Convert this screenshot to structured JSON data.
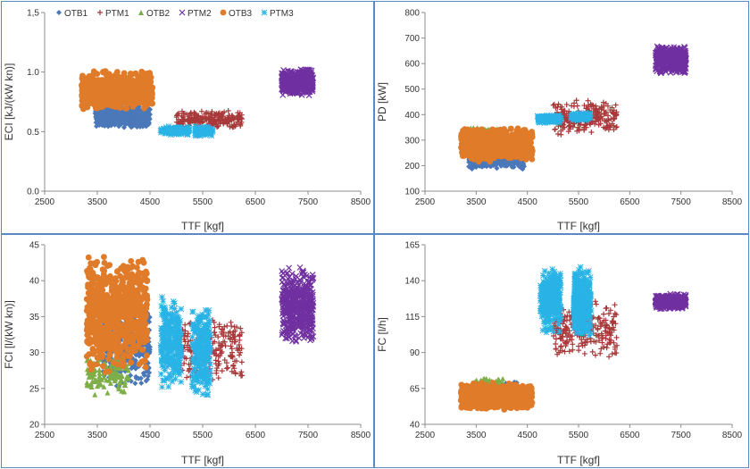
{
  "figure": {
    "border_color": "#5a8ac6",
    "legend": {
      "placement": "top-left inside first panel",
      "entries": [
        {
          "name": "OTB1",
          "marker": "diamond",
          "color": "#4a78b8"
        },
        {
          "name": "PTM1",
          "marker": "plus",
          "color": "#a8393a"
        },
        {
          "name": "OTB2",
          "marker": "triangle",
          "color": "#7eae48"
        },
        {
          "name": "PTM2",
          "marker": "x",
          "color": "#7030a0"
        },
        {
          "name": "OTB3",
          "marker": "circle",
          "color": "#e07b2a"
        },
        {
          "name": "PTM3",
          "marker": "star",
          "color": "#29b3e6"
        }
      ]
    }
  },
  "chart_data": [
    {
      "id": "eci",
      "type": "scatter",
      "title": "",
      "xlabel": "TTF  [kgf]",
      "ylabel": "ECI [kJ/(kW kn)]",
      "xlim": [
        2500,
        8500
      ],
      "ylim": [
        0,
        1.5
      ],
      "xticks": [
        2500,
        3500,
        4500,
        5500,
        6500,
        7500,
        8500
      ],
      "yticks": [
        "0.0",
        "0.5",
        "1.0",
        "1,5"
      ],
      "grid": false,
      "series": [
        {
          "name": "OTB1",
          "clusters": [
            {
              "x": [
                3450,
                4500
              ],
              "y": [
                0.53,
                0.72
              ],
              "n": 420
            }
          ]
        },
        {
          "name": "PTM1",
          "clusters": [
            {
              "x": [
                5000,
                6250
              ],
              "y": [
                0.52,
                0.68
              ],
              "n": 220
            }
          ]
        },
        {
          "name": "OTB2",
          "clusters": [
            {
              "x": [
                3250,
                3750
              ],
              "y": [
                0.72,
                0.85
              ],
              "n": 40
            }
          ]
        },
        {
          "name": "PTM2",
          "clusters": [
            {
              "x": [
                7000,
                7600
              ],
              "y": [
                0.8,
                1.03
              ],
              "n": 500
            }
          ]
        },
        {
          "name": "OTB3",
          "clusters": [
            {
              "x": [
                3200,
                4550
              ],
              "y": [
                0.68,
                1.01
              ],
              "n": 650
            }
          ]
        },
        {
          "name": "PTM3",
          "clusters": [
            {
              "x": [
                4700,
                5250
              ],
              "y": [
                0.47,
                0.55
              ],
              "n": 140
            },
            {
              "x": [
                5350,
                5700
              ],
              "y": [
                0.45,
                0.55
              ],
              "n": 100
            }
          ]
        }
      ]
    },
    {
      "id": "pd",
      "type": "scatter",
      "title": "",
      "xlabel": "TTF  [kgf]",
      "ylabel": "PD [kW]",
      "xlim": [
        2500,
        8500
      ],
      "ylim": [
        100,
        800
      ],
      "xticks": [
        2500,
        3500,
        4500,
        5500,
        6500,
        7500,
        8500
      ],
      "yticks": [
        100,
        200,
        300,
        400,
        500,
        600,
        700,
        800
      ],
      "grid": false,
      "series": [
        {
          "name": "OTB1",
          "clusters": [
            {
              "x": [
                3350,
                4450
              ],
              "y": [
                185,
                270
              ],
              "n": 420
            }
          ]
        },
        {
          "name": "PTM1",
          "clusters": [
            {
              "x": [
                5000,
                6250
              ],
              "y": [
                320,
                460
              ],
              "n": 220
            }
          ]
        },
        {
          "name": "OTB2",
          "clusters": [
            {
              "x": [
                3350,
                3950
              ],
              "y": [
                310,
                350
              ],
              "n": 80
            }
          ]
        },
        {
          "name": "PTM2",
          "clusters": [
            {
              "x": [
                7000,
                7600
              ],
              "y": [
                560,
                670
              ],
              "n": 500
            }
          ]
        },
        {
          "name": "OTB3",
          "clusters": [
            {
              "x": [
                3200,
                4600
              ],
              "y": [
                215,
                350
              ],
              "n": 650
            }
          ]
        },
        {
          "name": "PTM3",
          "clusters": [
            {
              "x": [
                4700,
                5150
              ],
              "y": [
                365,
                400
              ],
              "n": 140
            },
            {
              "x": [
                5350,
                5750
              ],
              "y": [
                375,
                410
              ],
              "n": 100
            }
          ]
        }
      ]
    },
    {
      "id": "fci",
      "type": "scatter",
      "title": "",
      "xlabel": "TTF  [kgf]",
      "ylabel": "FCI [l/(kW kn)]",
      "xlim": [
        2500,
        8500
      ],
      "ylim": [
        20,
        45
      ],
      "xticks": [
        2500,
        3500,
        4500,
        5500,
        6500,
        7500,
        8500
      ],
      "yticks": [
        20,
        25,
        30,
        35,
        40,
        45
      ],
      "grid": false,
      "series": [
        {
          "name": "OTB1",
          "clusters": [
            {
              "x": [
                3600,
                4500
              ],
              "y": [
                25,
                37
              ],
              "n": 400
            }
          ]
        },
        {
          "name": "PTM1",
          "clusters": [
            {
              "x": [
                5000,
                6250
              ],
              "y": [
                26,
                35
              ],
              "n": 240
            }
          ]
        },
        {
          "name": "OTB2",
          "clusters": [
            {
              "x": [
                3300,
                4100
              ],
              "y": [
                24,
                30
              ],
              "n": 120
            }
          ]
        },
        {
          "name": "PTM2",
          "clusters": [
            {
              "x": [
                7000,
                7600
              ],
              "y": [
                31,
                42
              ],
              "n": 500
            }
          ]
        },
        {
          "name": "OTB3",
          "clusters": [
            {
              "x": [
                3300,
                4450
              ],
              "y": [
                27,
                43.5
              ],
              "n": 750
            }
          ]
        },
        {
          "name": "PTM3",
          "clusters": [
            {
              "x": [
                4700,
                5100
              ],
              "y": [
                25,
                38
              ],
              "n": 260
            },
            {
              "x": [
                5300,
                5650
              ],
              "y": [
                24,
                37
              ],
              "n": 240
            }
          ]
        }
      ]
    },
    {
      "id": "fc",
      "type": "scatter",
      "title": "",
      "xlabel": "TTF  [kgf]",
      "ylabel": "FC [l/h]",
      "xlim": [
        2500,
        8500
      ],
      "ylim": [
        40,
        165
      ],
      "xticks": [
        2500,
        3500,
        4500,
        5500,
        6500,
        7500,
        8500
      ],
      "yticks": [
        40,
        65,
        90,
        115,
        140,
        165
      ],
      "grid": false,
      "series": [
        {
          "name": "OTB1",
          "clusters": [
            {
              "x": [
                3400,
                4300
              ],
              "y": [
                54,
                70
              ],
              "n": 300
            }
          ]
        },
        {
          "name": "PTM1",
          "clusters": [
            {
              "x": [
                5000,
                6250
              ],
              "y": [
                86,
                126
              ],
              "n": 240
            }
          ]
        },
        {
          "name": "OTB2",
          "clusters": [
            {
              "x": [
                3450,
                4050
              ],
              "y": [
                62,
                73
              ],
              "n": 80
            }
          ]
        },
        {
          "name": "PTM2",
          "clusters": [
            {
              "x": [
                7000,
                7600
              ],
              "y": [
                120,
                131
              ],
              "n": 400
            }
          ]
        },
        {
          "name": "OTB3",
          "clusters": [
            {
              "x": [
                3200,
                4600
              ],
              "y": [
                50,
                69
              ],
              "n": 650
            }
          ]
        },
        {
          "name": "PTM3",
          "clusters": [
            {
              "x": [
                4750,
                5150
              ],
              "y": [
                103,
                151
              ],
              "n": 300
            },
            {
              "x": [
                5400,
                5750
              ],
              "y": [
                100,
                151
              ],
              "n": 300
            }
          ]
        }
      ]
    }
  ]
}
